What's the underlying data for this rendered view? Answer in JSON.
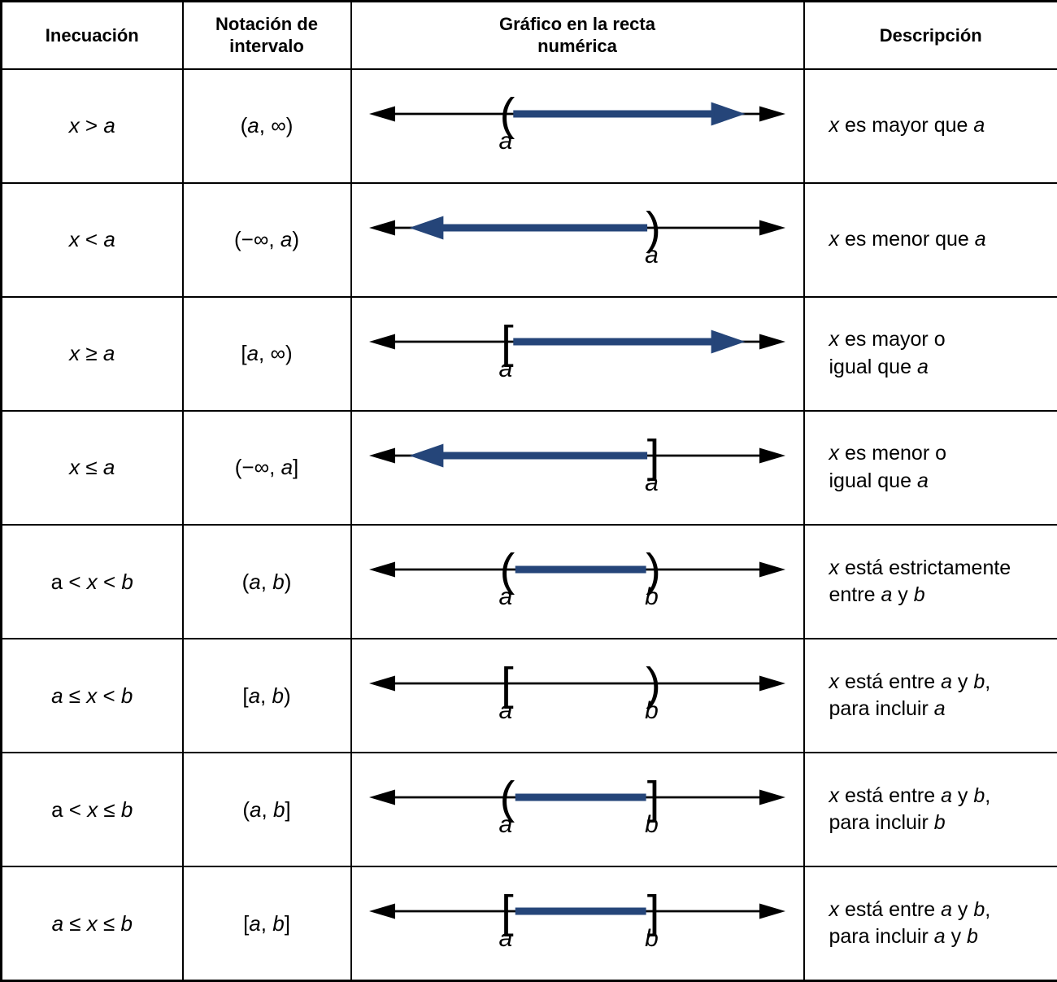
{
  "table": {
    "headers": [
      "Inecuación",
      "Notación de\nintervalo",
      "Gráfico en la recta\nnumérica",
      "Descripción"
    ]
  },
  "colors": {
    "line_black": "#000000",
    "shade_blue": "#254579",
    "text_black": "#000000",
    "background": "#ffffff"
  },
  "rows": [
    {
      "inequality": [
        [
          "x",
          1
        ],
        [
          "  >  ",
          0
        ],
        [
          "a",
          1
        ]
      ],
      "notation": [
        [
          "(",
          0
        ],
        [
          "a",
          1
        ],
        [
          ", ∞)",
          0
        ]
      ],
      "graph": {
        "markers": [
          {
            "glyph": "(",
            "pos": 0.325,
            "label": "a"
          }
        ],
        "shade": {
          "from": 0.34,
          "to": 0.92,
          "arrow": "right"
        }
      },
      "description": [
        [
          "x",
          1
        ],
        [
          " es mayor que ",
          0
        ],
        [
          "a",
          1
        ]
      ]
    },
    {
      "inequality": [
        [
          "x",
          1
        ],
        [
          " < ",
          0
        ],
        [
          "a",
          1
        ]
      ],
      "notation": [
        [
          "(−∞, ",
          0
        ],
        [
          "a",
          1
        ],
        [
          ")",
          0
        ]
      ],
      "graph": {
        "markers": [
          {
            "glyph": ")",
            "pos": 0.69,
            "label": "a"
          }
        ],
        "shade": {
          "from": 0.08,
          "to": 0.675,
          "arrow": "left"
        }
      },
      "description": [
        [
          "x",
          1
        ],
        [
          " es menor que ",
          0
        ],
        [
          "a",
          1
        ]
      ]
    },
    {
      "inequality": [
        [
          "x",
          1
        ],
        [
          " ≥ ",
          0
        ],
        [
          "a",
          1
        ]
      ],
      "notation": [
        [
          "[",
          0
        ],
        [
          "a",
          1
        ],
        [
          ", ∞)",
          0
        ]
      ],
      "graph": {
        "markers": [
          {
            "glyph": "[",
            "pos": 0.325,
            "label": "a"
          }
        ],
        "shade": {
          "from": 0.34,
          "to": 0.92,
          "arrow": "right"
        }
      },
      "description": [
        [
          "x",
          1
        ],
        [
          " es mayor o\nigual que ",
          0
        ],
        [
          "a",
          1
        ]
      ]
    },
    {
      "inequality": [
        [
          "x",
          1
        ],
        [
          " ≤ ",
          0
        ],
        [
          "a",
          1
        ]
      ],
      "notation": [
        [
          "(−∞, ",
          0
        ],
        [
          "a",
          1
        ],
        [
          "]",
          0
        ]
      ],
      "graph": {
        "markers": [
          {
            "glyph": "]",
            "pos": 0.69,
            "label": "a"
          }
        ],
        "shade": {
          "from": 0.08,
          "to": 0.675,
          "arrow": "left"
        }
      },
      "description": [
        [
          "x",
          1
        ],
        [
          " es menor o\nigual que ",
          0
        ],
        [
          "a",
          1
        ]
      ]
    },
    {
      "inequality": [
        [
          "a",
          0
        ],
        [
          " < ",
          0
        ],
        [
          "x",
          1
        ],
        [
          " < ",
          0
        ],
        [
          "b",
          1
        ]
      ],
      "notation": [
        [
          "(",
          0
        ],
        [
          "a",
          1
        ],
        [
          ", ",
          0
        ],
        [
          "b",
          1
        ],
        [
          ")",
          0
        ]
      ],
      "graph": {
        "markers": [
          {
            "glyph": "(",
            "pos": 0.325,
            "label": "a"
          },
          {
            "glyph": ")",
            "pos": 0.69,
            "label": "b"
          }
        ],
        "shade": {
          "from": 0.345,
          "to": 0.672,
          "arrow": null
        }
      },
      "description": [
        [
          "x",
          1
        ],
        [
          " está estrictamente\nentre ",
          0
        ],
        [
          "a",
          1
        ],
        [
          " y ",
          0
        ],
        [
          "b",
          1
        ]
      ]
    },
    {
      "inequality": [
        [
          "a",
          1
        ],
        [
          " ≤ ",
          0
        ],
        [
          "x",
          1
        ],
        [
          " < ",
          0
        ],
        [
          "b",
          1
        ]
      ],
      "notation": [
        [
          "[",
          0
        ],
        [
          "a",
          1
        ],
        [
          ", ",
          0
        ],
        [
          "b",
          1
        ],
        [
          ")",
          0
        ]
      ],
      "graph": {
        "markers": [
          {
            "glyph": "[",
            "pos": 0.325,
            "label": "a"
          },
          {
            "glyph": ")",
            "pos": 0.69,
            "label": "b"
          }
        ],
        "shade": null
      },
      "description": [
        [
          "x",
          1
        ],
        [
          " está entre ",
          0
        ],
        [
          "a",
          1
        ],
        [
          " y ",
          0
        ],
        [
          "b",
          1
        ],
        [
          ",\npara incluir ",
          0
        ],
        [
          "a",
          1
        ]
      ]
    },
    {
      "inequality": [
        [
          "a",
          0
        ],
        [
          " < ",
          0
        ],
        [
          "x",
          1
        ],
        [
          " ≤ ",
          0
        ],
        [
          "b",
          1
        ]
      ],
      "notation": [
        [
          "(",
          0
        ],
        [
          "a",
          1
        ],
        [
          ", ",
          0
        ],
        [
          "b",
          1
        ],
        [
          "]",
          0
        ]
      ],
      "graph": {
        "markers": [
          {
            "glyph": "(",
            "pos": 0.325,
            "label": "a"
          },
          {
            "glyph": "]",
            "pos": 0.69,
            "label": "b"
          }
        ],
        "shade": {
          "from": 0.345,
          "to": 0.672,
          "arrow": null
        }
      },
      "description": [
        [
          "x",
          1
        ],
        [
          " está entre ",
          0
        ],
        [
          "a",
          1
        ],
        [
          " y ",
          0
        ],
        [
          "b",
          1
        ],
        [
          ",\npara incluir ",
          0
        ],
        [
          "b",
          1
        ]
      ]
    },
    {
      "inequality": [
        [
          "a",
          1
        ],
        [
          " ≤ ",
          0
        ],
        [
          "x",
          1
        ],
        [
          " ≤ ",
          0
        ],
        [
          "b",
          1
        ]
      ],
      "notation": [
        [
          "[",
          0
        ],
        [
          "a",
          1
        ],
        [
          ", ",
          0
        ],
        [
          "b",
          1
        ],
        [
          "]",
          0
        ]
      ],
      "graph": {
        "markers": [
          {
            "glyph": "[",
            "pos": 0.325,
            "label": "a"
          },
          {
            "glyph": "]",
            "pos": 0.69,
            "label": "b"
          }
        ],
        "shade": {
          "from": 0.345,
          "to": 0.672,
          "arrow": null
        }
      },
      "description": [
        [
          "x",
          1
        ],
        [
          " está entre ",
          0
        ],
        [
          "a",
          1
        ],
        [
          " y ",
          0
        ],
        [
          "b",
          1
        ],
        [
          ",\npara incluir ",
          0
        ],
        [
          "a",
          1
        ],
        [
          " y ",
          0
        ],
        [
          "b",
          1
        ]
      ]
    }
  ]
}
